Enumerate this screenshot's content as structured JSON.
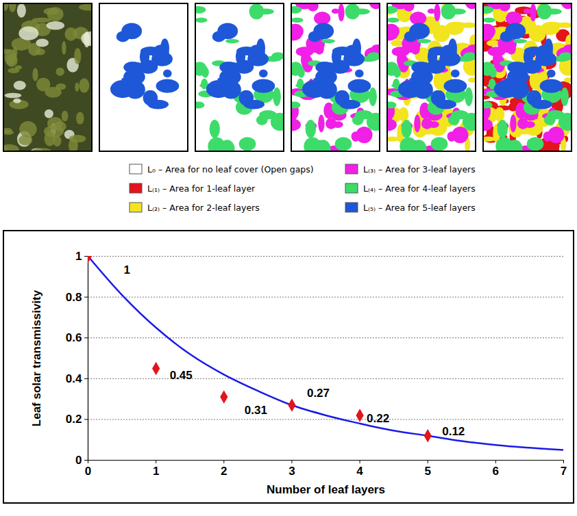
{
  "panels_legend": {
    "items": [
      {
        "label": "L₀ – Area for no leaf cover (Open gaps)",
        "color": "#ffffff"
      },
      {
        "label": "L₍₁₎ – Area for 1-leaf layer",
        "color": "#e3141c"
      },
      {
        "label": "L₍₂₎ – Area for 2-leaf layers",
        "color": "#f2e41e"
      },
      {
        "label": "L₍₃₎ – Area for 3-leaf layers",
        "color": "#f020e6"
      },
      {
        "label": "L₍₄₎ – Area for 4-leaf layers",
        "color": "#3ddc6a"
      },
      {
        "label": "L₍₅₎ – Area for 5-leaf layers",
        "color": "#1e58d8"
      }
    ]
  },
  "chart_data": {
    "type": "scatter",
    "x_label": "Number of leaf layers",
    "y_label": "Leaf solar transmissivity",
    "xlim": [
      0,
      7
    ],
    "xticks": [
      0,
      1,
      2,
      3,
      4,
      5,
      6,
      7
    ],
    "ylim": [
      0,
      1
    ],
    "yticks": [
      0,
      0.2,
      0.4,
      0.6,
      0.8,
      1
    ],
    "grid": true,
    "data_labels": true,
    "series": [
      {
        "type": "line",
        "line_style": "solid",
        "color": "#1a1ae6",
        "x": [
          0,
          0.5,
          1,
          1.5,
          2,
          2.5,
          3,
          3.5,
          4,
          4.5,
          5,
          5.5,
          6,
          6.5,
          7
        ],
        "values": [
          1,
          0.81,
          0.65,
          0.52,
          0.42,
          0.34,
          0.27,
          0.22,
          0.18,
          0.145,
          0.12,
          0.094,
          0.075,
          0.061,
          0.05
        ]
      },
      {
        "type": "scatter",
        "marker": "diamond",
        "color": "#e3141c",
        "x": [
          0,
          1,
          2,
          3,
          4,
          5
        ],
        "values": [
          1,
          0.45,
          0.31,
          0.27,
          0.22,
          0.12
        ]
      }
    ]
  }
}
